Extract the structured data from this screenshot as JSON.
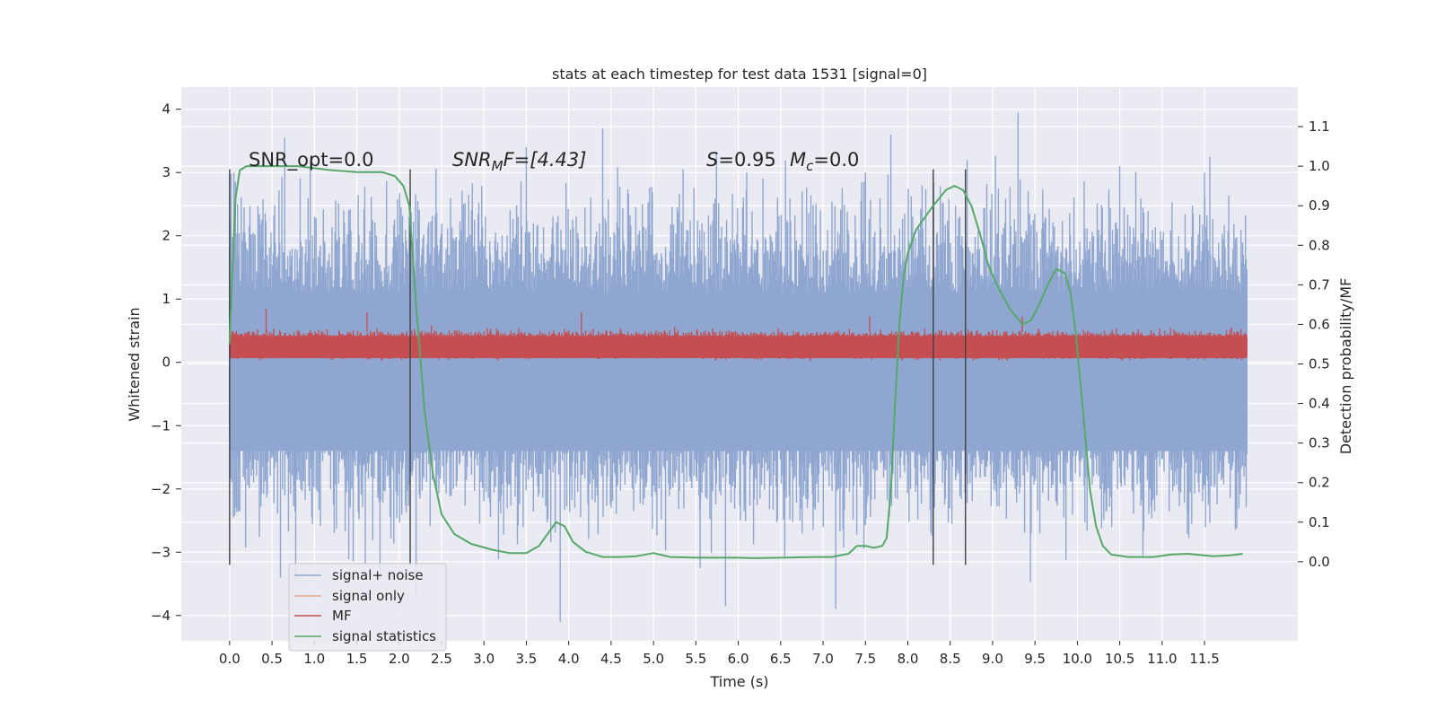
{
  "chart_data": {
    "type": "line",
    "title": "stats at each timestep for test data 1531 [signal=0]",
    "xlabel": "Time (s)",
    "ylabel_left": "Whitened strain",
    "ylabel_right": "Detection probability/MF",
    "xlim": [
      -0.57,
      12.6
    ],
    "ylim_left": [
      -4.4,
      4.35
    ],
    "ylim_right": [
      -0.2,
      1.2
    ],
    "x_ticks": [
      0.0,
      0.5,
      1.0,
      1.5,
      2.0,
      2.5,
      3.0,
      3.5,
      4.0,
      4.5,
      5.0,
      5.5,
      6.0,
      6.5,
      7.0,
      7.5,
      8.0,
      8.5,
      9.0,
      9.5,
      10.0,
      10.5,
      11.0,
      11.5
    ],
    "x_tick_labels": [
      "0.0",
      "0.5",
      "1.0",
      "1.5",
      "2.0",
      "2.5",
      "3.0",
      "3.5",
      "4.0",
      "4.5",
      "5.0",
      "5.5",
      "6.0",
      "6.5",
      "7.0",
      "7.5",
      "8.0",
      "8.5",
      "9.0",
      "9.5",
      "10.0",
      "10.5",
      "11.0",
      "11.5"
    ],
    "y_left_ticks": [
      -4,
      -3,
      -2,
      -1,
      0,
      1,
      2,
      3,
      4
    ],
    "y_left_tick_labels": [
      "−4",
      "−3",
      "−2",
      "−1",
      "0",
      "1",
      "2",
      "3",
      "4"
    ],
    "y_right_ticks": [
      0.0,
      0.1,
      0.2,
      0.3,
      0.4,
      0.5,
      0.6,
      0.7,
      0.8,
      0.9,
      1.0,
      1.1
    ],
    "y_right_tick_labels": [
      "0.0",
      "0.1",
      "0.2",
      "0.3",
      "0.4",
      "0.5",
      "0.6",
      "0.7",
      "0.8",
      "0.9",
      "1.0",
      "1.1"
    ],
    "grid": true,
    "legend_position": "lower-left",
    "annotations": {
      "snr_opt": "SNR_opt=0.0",
      "snr_mf_main": "SNR",
      "snr_mf_sub": "M",
      "snr_mf_rest": "F=[4.43]",
      "s_main": "S",
      "s_rest": "=0.95",
      "mc_main": "M",
      "mc_sub": "c",
      "mc_rest": "=0.0"
    },
    "vertical_lines_x": [
      0.0,
      2.13,
      8.3,
      8.68
    ],
    "vertical_lines_range": [
      -3.2,
      3.05
    ],
    "series": [
      {
        "name": "signal+ noise",
        "axis": "left",
        "color": "#8fa7d0",
        "style": "dense-noise",
        "x_range": [
          0.0,
          12.0
        ],
        "envelope": {
          "lower": -2.2,
          "upper": 2.2
        },
        "extremes": [
          {
            "x": 0.05,
            "y": 3.0
          },
          {
            "x": 0.6,
            "y": -3.4
          },
          {
            "x": 0.78,
            "y": -3.5
          },
          {
            "x": 0.65,
            "y": 3.55
          },
          {
            "x": 1.6,
            "y": -3.2
          },
          {
            "x": 2.2,
            "y": -3.7
          },
          {
            "x": 3.5,
            "y": 3.4
          },
          {
            "x": 3.9,
            "y": -4.1
          },
          {
            "x": 4.4,
            "y": 3.7
          },
          {
            "x": 5.55,
            "y": -3.25
          },
          {
            "x": 5.85,
            "y": -3.85
          },
          {
            "x": 6.1,
            "y": 3.0
          },
          {
            "x": 7.15,
            "y": -3.9
          },
          {
            "x": 7.5,
            "y": 3.0
          },
          {
            "x": 7.8,
            "y": 3.6
          },
          {
            "x": 8.7,
            "y": 3.2
          },
          {
            "x": 9.3,
            "y": 3.95
          },
          {
            "x": 10.5,
            "y": 3.1
          },
          {
            "x": 11.5,
            "y": 3.0
          }
        ]
      },
      {
        "name": "signal only",
        "axis": "left",
        "color": "#e8a787",
        "x": [],
        "values": []
      },
      {
        "name": "MF",
        "axis": "right",
        "color": "#c44e52",
        "style": "dense-band",
        "x_range": [
          0.0,
          12.0
        ],
        "band": {
          "lower": 0.51,
          "upper": 0.58
        },
        "extremes": [
          {
            "x": 0.43,
            "y": 0.64
          },
          {
            "x": 1.62,
            "y": 0.63
          },
          {
            "x": 4.15,
            "y": 0.63
          },
          {
            "x": 7.55,
            "y": 0.62
          },
          {
            "x": 9.35,
            "y": 0.62
          }
        ]
      },
      {
        "name": "signal statistics",
        "axis": "right",
        "color": "#55a868",
        "x": [
          0.0,
          0.03,
          0.07,
          0.12,
          0.2,
          0.4,
          0.8,
          1.2,
          1.5,
          1.8,
          1.95,
          2.05,
          2.12,
          2.2,
          2.3,
          2.4,
          2.5,
          2.65,
          2.85,
          3.1,
          3.3,
          3.5,
          3.65,
          3.75,
          3.85,
          3.95,
          4.05,
          4.2,
          4.4,
          4.6,
          4.8,
          5.0,
          5.2,
          5.5,
          6.0,
          6.2,
          6.5,
          6.9,
          7.1,
          7.3,
          7.4,
          7.5,
          7.6,
          7.7,
          7.75,
          7.8,
          7.85,
          7.9,
          7.95,
          8.0,
          8.1,
          8.3,
          8.45,
          8.55,
          8.65,
          8.75,
          8.85,
          8.95,
          9.05,
          9.2,
          9.35,
          9.45,
          9.55,
          9.65,
          9.75,
          9.85,
          9.92,
          9.98,
          10.05,
          10.1,
          10.15,
          10.22,
          10.3,
          10.4,
          10.6,
          10.9,
          11.1,
          11.3,
          11.6,
          11.8,
          11.95
        ],
        "values": [
          0.55,
          0.72,
          0.92,
          0.99,
          1.0,
          1.0,
          1.0,
          0.99,
          0.985,
          0.985,
          0.975,
          0.95,
          0.9,
          0.65,
          0.38,
          0.22,
          0.12,
          0.07,
          0.045,
          0.03,
          0.022,
          0.022,
          0.04,
          0.07,
          0.1,
          0.09,
          0.05,
          0.025,
          0.012,
          0.012,
          0.014,
          0.022,
          0.012,
          0.01,
          0.01,
          0.009,
          0.01,
          0.012,
          0.012,
          0.02,
          0.04,
          0.04,
          0.035,
          0.04,
          0.06,
          0.18,
          0.4,
          0.6,
          0.72,
          0.78,
          0.84,
          0.9,
          0.94,
          0.95,
          0.94,
          0.9,
          0.83,
          0.75,
          0.7,
          0.64,
          0.6,
          0.61,
          0.65,
          0.7,
          0.74,
          0.73,
          0.68,
          0.58,
          0.42,
          0.3,
          0.18,
          0.09,
          0.04,
          0.018,
          0.012,
          0.012,
          0.018,
          0.02,
          0.014,
          0.016,
          0.02
        ]
      }
    ]
  },
  "colors": {
    "plot_background": "#eaeaf2",
    "grid": "#ffffff",
    "text": "#262626",
    "vertical_line": "#404040"
  }
}
